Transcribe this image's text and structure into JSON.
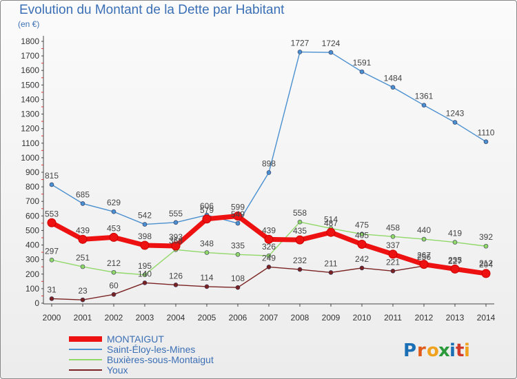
{
  "header": {
    "title": "Evolution du Montant de la Dette par Habitant",
    "subtitle": "(en €)"
  },
  "logo": {
    "letters": [
      "P",
      "r",
      "o",
      "x",
      "i",
      "t",
      "i"
    ],
    "colors": [
      "#1a6fb5",
      "#e05a1a",
      "#f0a21e",
      "#2a9a3a",
      "#1a6fb5",
      "#d23a2a",
      "#f0a21e"
    ]
  },
  "chart_data": {
    "type": "line",
    "x": [
      "2000",
      "2001",
      "2002",
      "2003",
      "2004",
      "2005",
      "2006",
      "2007",
      "2008",
      "2009",
      "2010",
      "2011",
      "2012",
      "2013",
      "2014"
    ],
    "ylim": [
      0,
      1800
    ],
    "yticks": [
      0,
      100,
      200,
      300,
      400,
      500,
      600,
      700,
      800,
      900,
      1000,
      1100,
      1200,
      1300,
      1400,
      1500,
      1600,
      1700,
      1800
    ],
    "grid": false,
    "legend_position": "bottom-left",
    "series": [
      {
        "name": "MONTAIGUT",
        "color": "#ee1111",
        "values": [
          553,
          439,
          453,
          398,
          393,
          579,
          599,
          439,
          435,
          487,
          405,
          337,
          267,
          235,
          204
        ]
      },
      {
        "name": "Saint-Éloy-les-Mines",
        "color": "#4a8fcf",
        "values": [
          815,
          685,
          629,
          542,
          555,
          606,
          549,
          898,
          1727,
          1724,
          1591,
          1484,
          1361,
          1243,
          1110
        ]
      },
      {
        "name": "Buxières-sous-Montaigut",
        "color": "#90d868",
        "values": [
          297,
          251,
          212,
          195,
          368,
          348,
          335,
          326,
          558,
          514,
          475,
          458,
          440,
          419,
          392
        ]
      },
      {
        "name": "Youx",
        "color": "#7a2222",
        "values": [
          31,
          23,
          60,
          140,
          126,
          114,
          108,
          249,
          232,
          211,
          242,
          221,
          256,
          227,
          212
        ]
      }
    ]
  }
}
